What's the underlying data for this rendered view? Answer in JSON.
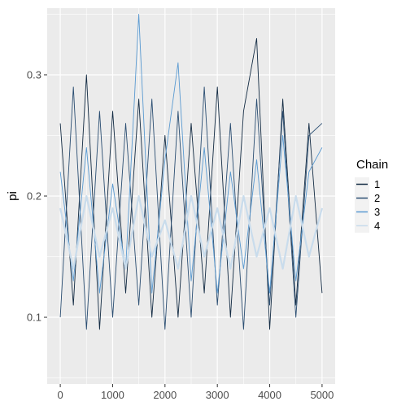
{
  "chart_data": {
    "type": "line",
    "title": "",
    "xlabel": "",
    "ylabel": "pi",
    "xlim": [
      -250,
      5250
    ],
    "ylim": [
      0.045,
      0.355
    ],
    "x_ticks": [
      0,
      1000,
      2000,
      3000,
      4000,
      5000
    ],
    "x_tick_labels": [
      "0",
      "1000",
      "2000",
      "3000",
      "4000",
      "5000"
    ],
    "y_ticks": [
      0.1,
      0.2,
      0.3
    ],
    "y_tick_labels": [
      "0.1",
      "0.2",
      "0.3"
    ],
    "grid": true,
    "legend": {
      "title": "Chain",
      "position": "right",
      "entries": [
        "1",
        "2",
        "3",
        "4"
      ]
    },
    "colors": {
      "panel_background": "#ebebeb",
      "grid_line": "#ffffff"
    },
    "series": [
      {
        "name": "1",
        "color": "#132b43",
        "x": [
          0,
          250,
          500,
          750,
          1000,
          1250,
          1500,
          1750,
          2000,
          2250,
          2500,
          2750,
          3000,
          3250,
          3500,
          3750,
          4000,
          4250,
          4500,
          4750,
          5000
        ],
        "values": [
          0.26,
          0.11,
          0.3,
          0.09,
          0.27,
          0.12,
          0.28,
          0.1,
          0.25,
          0.1,
          0.26,
          0.12,
          0.29,
          0.1,
          0.27,
          0.33,
          0.09,
          0.28,
          0.11,
          0.26,
          0.12
        ]
      },
      {
        "name": "2",
        "color": "#2b4e72",
        "x": [
          0,
          250,
          500,
          750,
          1000,
          1250,
          1500,
          1750,
          2000,
          2250,
          2500,
          2750,
          3000,
          3250,
          3500,
          3750,
          4000,
          4250,
          4500,
          4750,
          5000
        ],
        "values": [
          0.1,
          0.29,
          0.09,
          0.27,
          0.1,
          0.26,
          0.11,
          0.28,
          0.09,
          0.27,
          0.1,
          0.29,
          0.11,
          0.26,
          0.09,
          0.28,
          0.11,
          0.27,
          0.1,
          0.25,
          0.26
        ]
      },
      {
        "name": "3",
        "color": "#5a9ad1",
        "x": [
          0,
          250,
          500,
          750,
          1000,
          1250,
          1500,
          1750,
          2000,
          2250,
          2500,
          2750,
          3000,
          3250,
          3500,
          3750,
          4000,
          4250,
          4500,
          4750,
          5000
        ],
        "values": [
          0.22,
          0.13,
          0.24,
          0.12,
          0.21,
          0.14,
          0.35,
          0.12,
          0.23,
          0.31,
          0.13,
          0.24,
          0.12,
          0.22,
          0.14,
          0.23,
          0.12,
          0.25,
          0.13,
          0.22,
          0.24
        ]
      },
      {
        "name": "4",
        "color": "#c9dcec",
        "x": [
          0,
          250,
          500,
          750,
          1000,
          1250,
          1500,
          1750,
          2000,
          2250,
          2500,
          2750,
          3000,
          3250,
          3500,
          3750,
          4000,
          4250,
          4500,
          4750,
          5000
        ],
        "values": [
          0.19,
          0.14,
          0.2,
          0.15,
          0.19,
          0.14,
          0.2,
          0.15,
          0.18,
          0.14,
          0.2,
          0.15,
          0.19,
          0.14,
          0.2,
          0.15,
          0.19,
          0.14,
          0.2,
          0.15,
          0.19
        ]
      }
    ]
  }
}
